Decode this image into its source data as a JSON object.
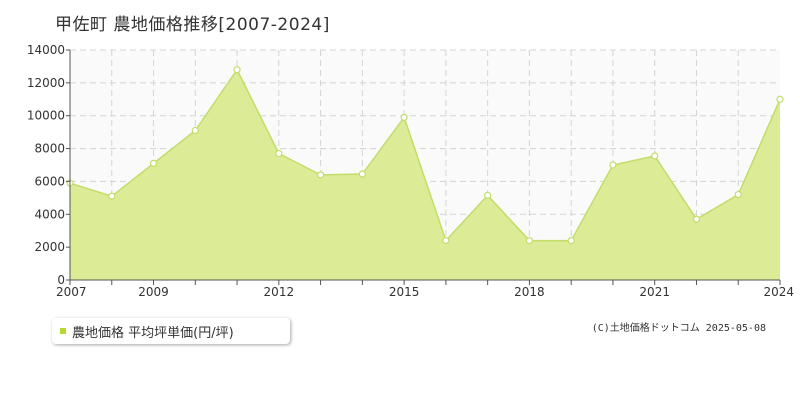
{
  "page": {
    "title": "甲佐町 農地価格推移[2007-2024]",
    "credit": "(C)土地価格ドットコム 2025-05-08"
  },
  "colors": {
    "area_fill": "#dceb96",
    "line": "#c2dd6a",
    "marker_fill": "#ffffff",
    "plot_bg": "#fafafa",
    "grid": "#d4d4d4",
    "legend_swatch": "#b6d932"
  },
  "chart_data": {
    "type": "area",
    "title": "甲佐町 農地価格推移[2007-2024]",
    "xlabel": "",
    "ylabel": "",
    "xlim": [
      2007,
      2024
    ],
    "ylim": [
      0,
      14000
    ],
    "x_ticks": [
      2007,
      2009,
      2012,
      2015,
      2018,
      2021,
      2024
    ],
    "y_ticks": [
      0,
      2000,
      4000,
      6000,
      8000,
      10000,
      12000,
      14000
    ],
    "grid": true,
    "legend_position": "bottom-left",
    "series": [
      {
        "name": "農地価格 平均坪単価(円/坪)",
        "x": [
          2007,
          2008,
          2009,
          2010,
          2011,
          2012,
          2013,
          2014,
          2015,
          2016,
          2017,
          2018,
          2019,
          2020,
          2021,
          2022,
          2023,
          2024
        ],
        "values": [
          5900,
          5100,
          7100,
          9100,
          12800,
          7700,
          6400,
          6450,
          9900,
          2400,
          5150,
          2400,
          2400,
          7000,
          7550,
          3700,
          5200,
          11000
        ]
      }
    ]
  }
}
